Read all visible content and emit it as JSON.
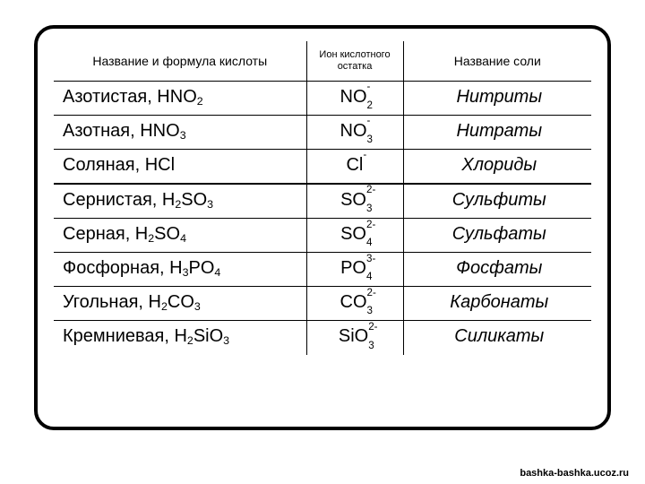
{
  "table": {
    "type": "table",
    "columns": [
      "Название и формула кислоты",
      "Ион кислотного остатка",
      "Название соли"
    ],
    "col_widths_pct": [
      47,
      18,
      35
    ],
    "header_fontsize": 14,
    "body_fontsize": 20,
    "salt_font_style": "italic",
    "border_color": "#000000",
    "outer_border_width": 4,
    "outer_border_radius": 22,
    "background_color": "#ffffff",
    "rows": [
      {
        "acid_name": "Азотистая,",
        "acid_formula_base": "HNO",
        "acid_formula_sub": "2",
        "ion_base": "NO",
        "ion_sub": "2",
        "ion_charge": "-",
        "salt": "Нитриты"
      },
      {
        "acid_name": "Азотная,",
        "acid_formula_base": "HNO",
        "acid_formula_sub": "3",
        "ion_base": "NO",
        "ion_sub": "3",
        "ion_charge": "-",
        "salt": "Нитраты"
      },
      {
        "acid_name": "Соляная,",
        "acid_formula_base": "HCl",
        "acid_formula_sub": "",
        "ion_base": "Cl",
        "ion_sub": "",
        "ion_charge": "-",
        "salt": "Хлориды"
      },
      {
        "acid_name": "Сернистая,",
        "acid_formula_base": "H",
        "acid_formula_sub": "2",
        "acid_formula_tail": "SO",
        "acid_formula_sub2": "3",
        "ion_base": "SO",
        "ion_sub": "3",
        "ion_charge": "2-",
        "salt": "Сульфиты"
      },
      {
        "acid_name": "Серная,",
        "acid_formula_base": "H",
        "acid_formula_sub": "2",
        "acid_formula_tail": "SO",
        "acid_formula_sub2": "4",
        "ion_base": "SO",
        "ion_sub": "4",
        "ion_charge": "2-",
        "salt": "Сульфаты"
      },
      {
        "acid_name": "Фосфорная,",
        "acid_formula_base": "H",
        "acid_formula_sub": "3",
        "acid_formula_tail": "PO",
        "acid_formula_sub2": "4",
        "ion_base": "PO",
        "ion_sub": "4",
        "ion_charge": "3-",
        "salt": "Фосфаты"
      },
      {
        "acid_name": "Угольная,",
        "acid_formula_base": "H",
        "acid_formula_sub": "2",
        "acid_formula_tail": "CO",
        "acid_formula_sub2": "3",
        "ion_base": "CO",
        "ion_sub": "3",
        "ion_charge": "2-",
        "salt": "Карбонаты"
      },
      {
        "acid_name": "Кремниевая,",
        "acid_formula_base": "H",
        "acid_formula_sub": "2",
        "acid_formula_tail": "SiO",
        "acid_formula_sub2": "3",
        "ion_base": "SiO",
        "ion_sub": "3",
        "ion_charge": "2-",
        "salt": "Силикаты"
      }
    ],
    "strong_row_separators_after": [
      3
    ]
  },
  "watermark": "bashka-bashka.ucoz.ru"
}
